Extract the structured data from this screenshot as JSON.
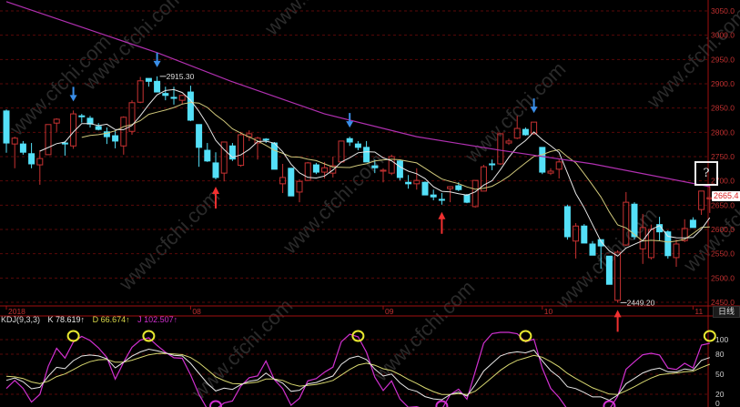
{
  "chart_data": {
    "type": "candlestick",
    "y_axis": {
      "ticks": [
        3050,
        3000,
        2950,
        2900,
        2850,
        2800,
        2750,
        2700,
        2650,
        2600,
        2550,
        2500,
        2450
      ],
      "ylim": [
        2440,
        3075
      ],
      "grid": true,
      "tick_format": "0.0"
    },
    "x_axis": {
      "ticks": [
        {
          "label": "2018",
          "index": 0
        },
        {
          "label": "08",
          "index": 22
        },
        {
          "label": "09",
          "index": 45
        },
        {
          "label": "10",
          "index": 64
        },
        {
          "label": "11",
          "index": 82
        }
      ]
    },
    "candles": [
      [
        2844,
        2847,
        2758,
        2778
      ],
      [
        2776,
        2791,
        2726,
        2788
      ],
      [
        2776,
        2782,
        2754,
        2759
      ],
      [
        2756,
        2778,
        2726,
        2735
      ],
      [
        2733,
        2763,
        2692,
        2746
      ],
      [
        2754,
        2816,
        2754,
        2816
      ],
      [
        2819,
        2829,
        2801,
        2827
      ],
      [
        2778,
        2782,
        2752,
        2776
      ],
      [
        2772,
        2845,
        2766,
        2838
      ],
      [
        2834,
        2838,
        2820,
        2832
      ],
      [
        2829,
        2834,
        2810,
        2817
      ],
      [
        2812,
        2819,
        2804,
        2806
      ],
      [
        2801,
        2810,
        2776,
        2791
      ],
      [
        2793,
        2804,
        2767,
        2782
      ],
      [
        2772,
        2833,
        2754,
        2831
      ],
      [
        2802,
        2866,
        2795,
        2861
      ],
      [
        2862,
        2914,
        2860,
        2906
      ],
      [
        2911,
        2911,
        2894,
        2905
      ],
      [
        2905,
        2915.3,
        2883,
        2883
      ],
      [
        2880,
        2894,
        2866,
        2876
      ],
      [
        2872,
        2894,
        2857,
        2870
      ],
      [
        2866,
        2877,
        2857,
        2876
      ],
      [
        2883,
        2896,
        2823,
        2825
      ],
      [
        2816,
        2816,
        2729,
        2769
      ],
      [
        2763,
        2778,
        2739,
        2741
      ],
      [
        2737,
        2759,
        2703,
        2707
      ],
      [
        2716,
        2780,
        2699,
        2780
      ],
      [
        2772,
        2778,
        2741,
        2745
      ],
      [
        2732,
        2801,
        2729,
        2795
      ],
      [
        2791,
        2804,
        2782,
        2797
      ],
      [
        2778,
        2791,
        2744,
        2788
      ],
      [
        2786,
        2788,
        2778,
        2784
      ],
      [
        2778,
        2780,
        2724,
        2724
      ],
      [
        2694,
        2735,
        2675,
        2707
      ],
      [
        2726,
        2726,
        2669,
        2669
      ],
      [
        2677,
        2703,
        2656,
        2699
      ],
      [
        2701,
        2739,
        2701,
        2737
      ],
      [
        2733,
        2737,
        2714,
        2718
      ],
      [
        2718,
        2739,
        2705,
        2727
      ],
      [
        2716,
        2750,
        2707,
        2731
      ],
      [
        2739,
        2782,
        2737,
        2782
      ],
      [
        2787,
        2791,
        2772,
        2780
      ],
      [
        2776,
        2782,
        2763,
        2769
      ],
      [
        2769,
        2782,
        2739,
        2739
      ],
      [
        2731,
        2744,
        2716,
        2727
      ],
      [
        2720,
        2726,
        2697,
        2722
      ],
      [
        2716,
        2754,
        2712,
        2750
      ],
      [
        2741,
        2744,
        2701,
        2707
      ],
      [
        2697,
        2712,
        2684,
        2694
      ],
      [
        2694,
        2726,
        2682,
        2701
      ],
      [
        2697,
        2699,
        2671,
        2671
      ],
      [
        2671,
        2682,
        2660,
        2667
      ],
      [
        2662,
        2675,
        2651,
        2660
      ],
      [
        2684,
        2688,
        2656,
        2688
      ],
      [
        2690,
        2697,
        2679,
        2682
      ],
      [
        2671,
        2673,
        2654,
        2656
      ],
      [
        2647,
        2701,
        2645,
        2701
      ],
      [
        2679,
        2733,
        2679,
        2729
      ],
      [
        2735,
        2744,
        2722,
        2733
      ],
      [
        2735,
        2797,
        2733,
        2797
      ],
      [
        2778,
        2787,
        2774,
        2782
      ],
      [
        2788,
        2834,
        2786,
        2808
      ],
      [
        2806,
        2810,
        2793,
        2795
      ],
      [
        2797,
        2821,
        2795,
        2821
      ],
      [
        2769,
        2769,
        2714,
        2718
      ],
      [
        2716,
        2726,
        2712,
        2720
      ],
      [
        2724,
        2744,
        2705,
        2739
      ],
      [
        2647,
        2651,
        2579,
        2585
      ],
      [
        2576,
        2613,
        2540,
        2607
      ],
      [
        2607,
        2611,
        2572,
        2572
      ],
      [
        2570,
        2576,
        2547,
        2547
      ],
      [
        2579,
        2579,
        2519,
        2566
      ],
      [
        2545,
        2545,
        2487,
        2487
      ],
      [
        2454,
        2557,
        2449.2,
        2553
      ],
      [
        2568,
        2677,
        2566,
        2656
      ],
      [
        2652,
        2656,
        2579,
        2585
      ],
      [
        2560,
        2632,
        2529,
        2604
      ],
      [
        2542,
        2610,
        2538,
        2600
      ],
      [
        2610,
        2626,
        2576,
        2595
      ],
      [
        2595,
        2598,
        2540,
        2546
      ],
      [
        2542,
        2579,
        2523,
        2570
      ],
      [
        2577,
        2621,
        2574,
        2602
      ],
      [
        2619,
        2625,
        2604,
        2604
      ],
      [
        2641,
        2679,
        2630,
        2679
      ],
      [
        2663,
        2694,
        2634,
        2665.4
      ]
    ],
    "candle_fields": [
      "open",
      "high",
      "low",
      "close"
    ],
    "ma_long": [
      [
        0,
        3069
      ],
      [
        18,
        2964
      ],
      [
        27,
        2904
      ],
      [
        38,
        2838
      ],
      [
        49,
        2791
      ],
      [
        59,
        2763
      ],
      [
        70,
        2735
      ],
      [
        84,
        2688
      ]
    ],
    "annotations": {
      "high_label": "2915.30",
      "low_label": "2449.20",
      "last_price": "2665.4",
      "sell_arrows": [
        8,
        18,
        41,
        63
      ],
      "buy_arrows": [
        25,
        52,
        73
      ]
    },
    "kdj": {
      "title": "KDJ(9,3,3)",
      "k_label": "K 78.619↑",
      "d_label": "D 66.674↑",
      "j_label": "J 102.507↑",
      "axis_ticks": [
        100,
        80,
        50,
        20,
        0
      ],
      "overbought_circles": [
        8,
        17,
        42,
        62,
        84
      ],
      "oversold_circles": [
        25,
        52,
        72
      ]
    }
  },
  "colors": {
    "background": "#000000",
    "up": "#c83232",
    "down": "#54e0f8",
    "ma5": "#e6e6e6",
    "ma10": "#cfc77a",
    "ma_long": "#b030b0",
    "grid": "#5a0a0a",
    "axis": "#a01010",
    "axis_text": "#c03030",
    "k": "#e8e8e8",
    "d": "#d8d870",
    "j": "#d030d0",
    "sell_arrow": "#3a8ee8",
    "buy_arrow": "#f03030",
    "circle_yellow": "#e8e830",
    "circle_magenta": "#d030d0"
  },
  "ui": {
    "period_button": "日线",
    "question_button": "?"
  },
  "watermark": "www.cfchi.com"
}
